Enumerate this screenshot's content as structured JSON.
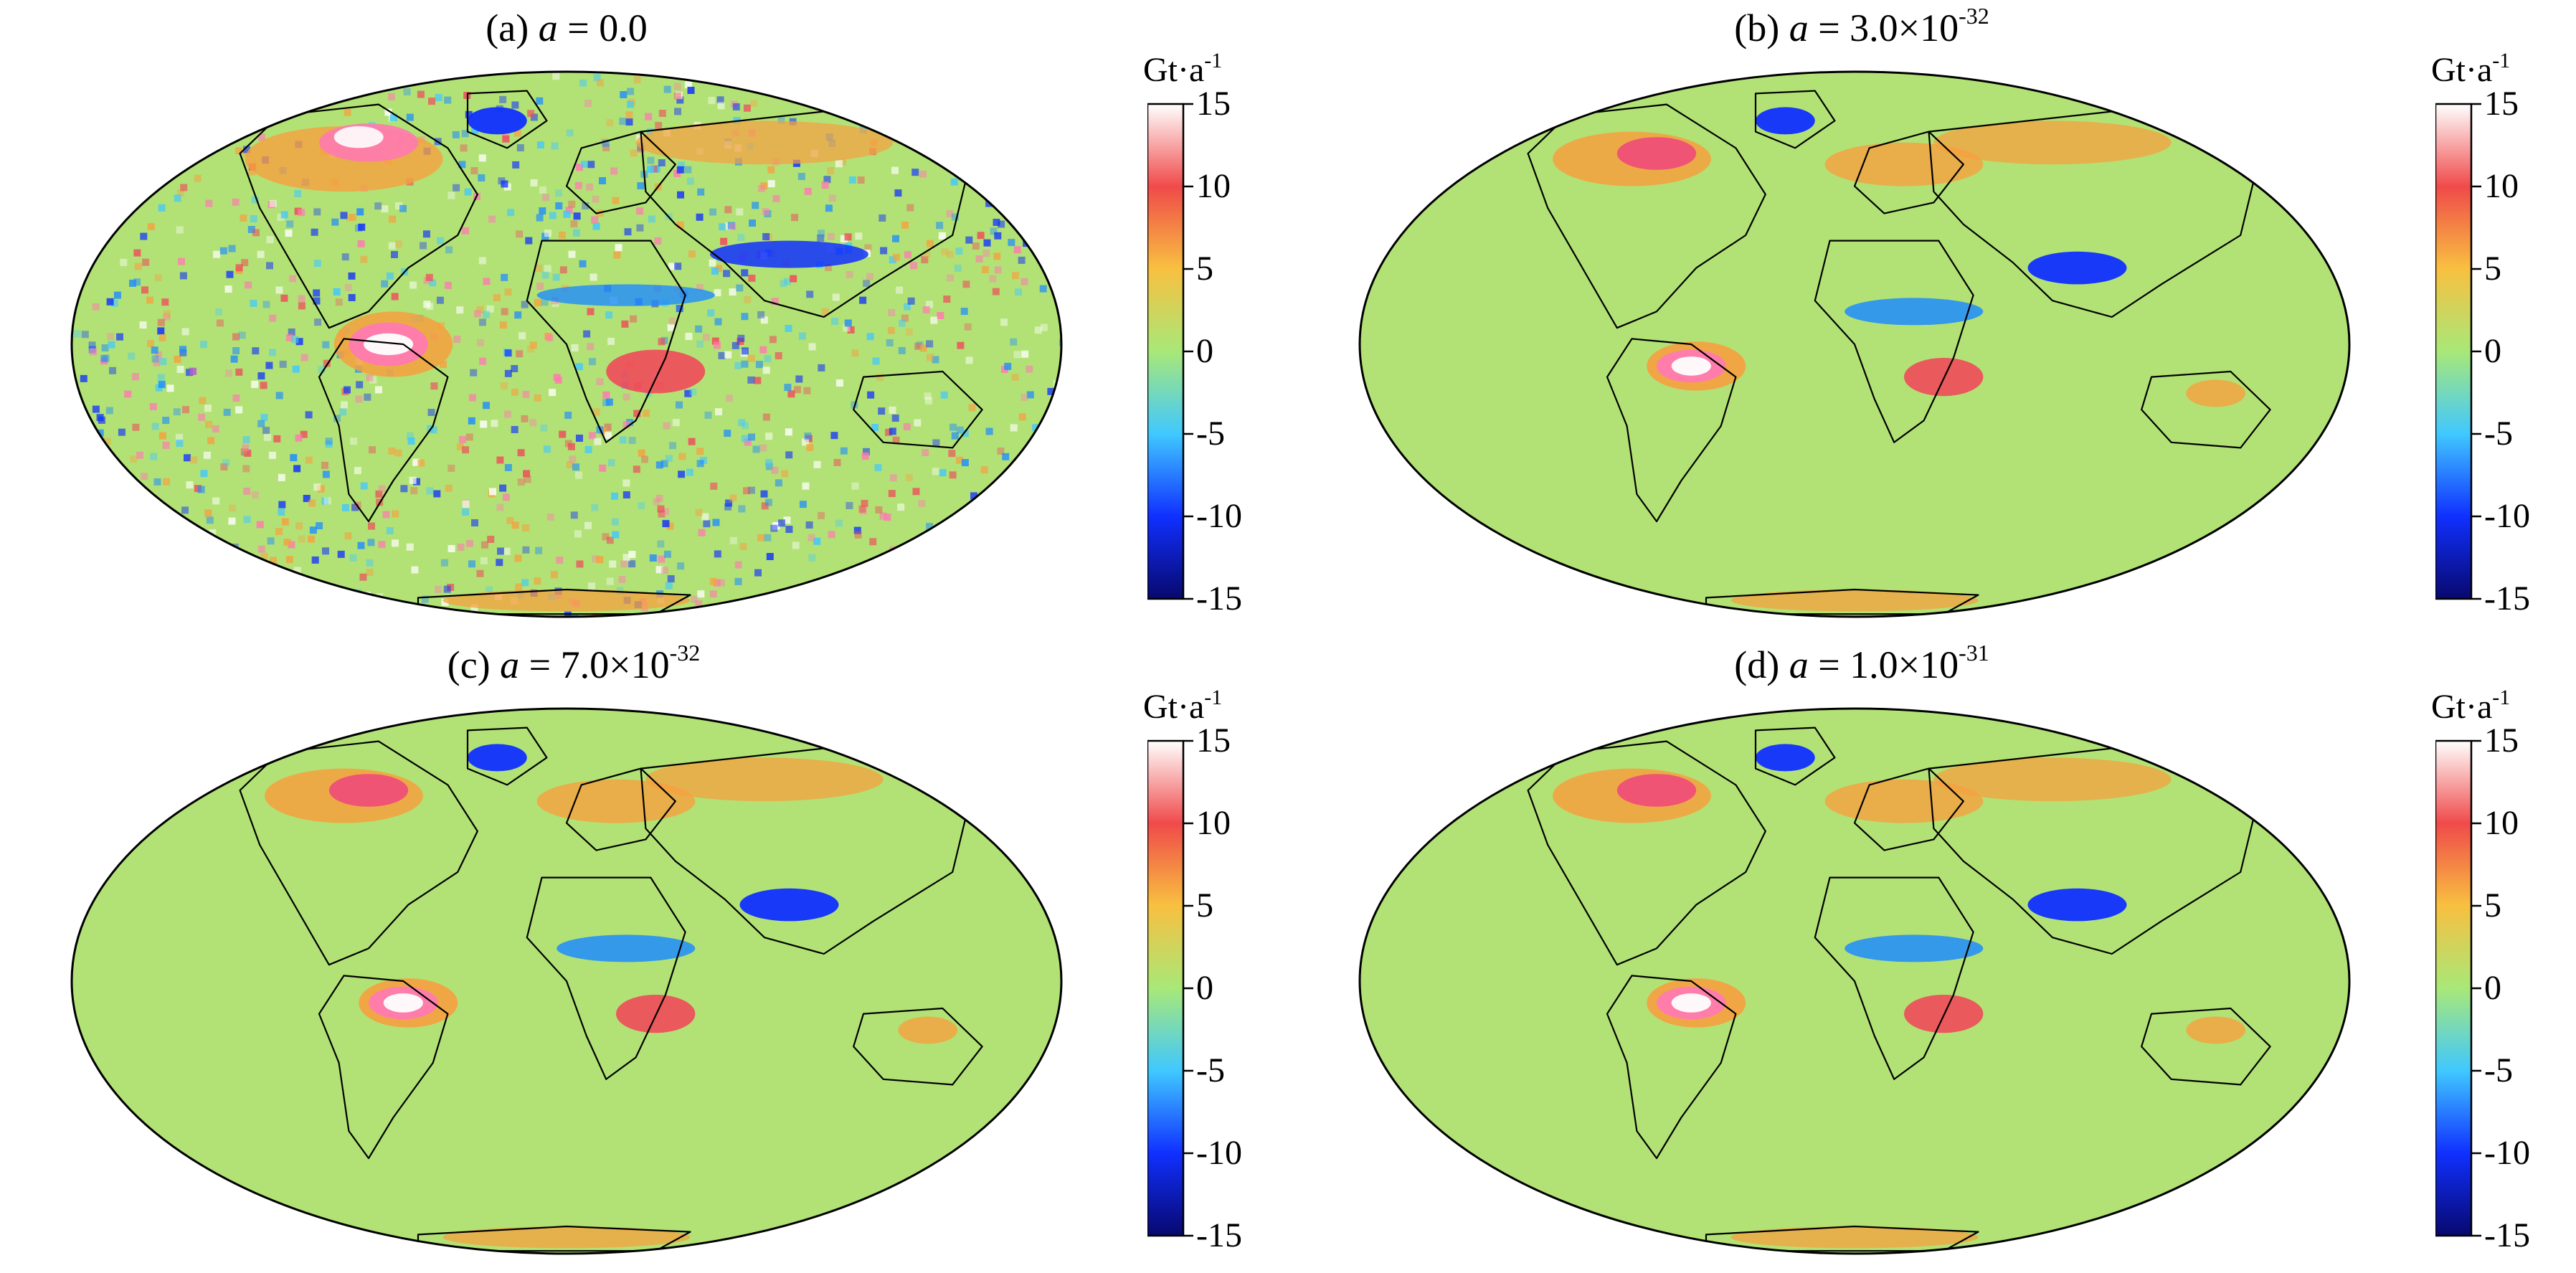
{
  "colorbar": {
    "unit_base": "Gt·a",
    "unit_exp": "-1",
    "ticks": [
      "15",
      "10",
      "5",
      "0",
      "-5",
      "-10",
      "-15"
    ],
    "range": [
      -15,
      15
    ],
    "colors": [
      "#08086e",
      "#1030ff",
      "#40c8ff",
      "#a8e878",
      "#f8c040",
      "#f04a4a",
      "#ffffff"
    ]
  },
  "panels": [
    {
      "label": "(a)",
      "var": "a",
      "eq": " = ",
      "mantissa": "0.0",
      "exp": "",
      "noise": "high"
    },
    {
      "label": "(b)",
      "var": "a",
      "eq": " = ",
      "mantissa": "3.0×10",
      "exp": "-32",
      "noise": "low"
    },
    {
      "label": "(c)",
      "var": "a",
      "eq": " = ",
      "mantissa": "7.0×10",
      "exp": "-32",
      "noise": "low"
    },
    {
      "label": "(d)",
      "var": "a",
      "eq": " = ",
      "mantissa": "1.0×10",
      "exp": "-31",
      "noise": "low"
    }
  ],
  "features": {
    "ocean_color": "#b2e276",
    "coast_color": "#000000"
  }
}
